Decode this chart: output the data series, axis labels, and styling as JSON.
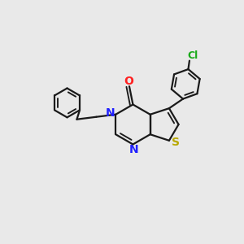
{
  "background_color": "#e9e9e9",
  "bond_color": "#1a1a1a",
  "n_color": "#2020ff",
  "o_color": "#ff2020",
  "s_color": "#b8a800",
  "cl_color": "#1aaa1a",
  "line_width": 1.6,
  "figsize": [
    3.0,
    3.0
  ],
  "dpi": 100,
  "xlim": [
    0,
    1
  ],
  "ylim": [
    0,
    1
  ]
}
